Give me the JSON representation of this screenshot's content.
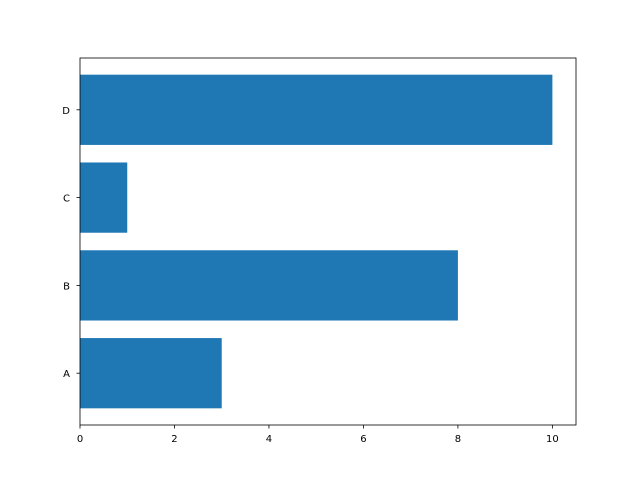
{
  "chart_data": {
    "type": "bar",
    "orientation": "horizontal",
    "categories": [
      "A",
      "B",
      "C",
      "D"
    ],
    "values": [
      3,
      8,
      1,
      10
    ],
    "title": "",
    "xlabel": "",
    "ylabel": "",
    "xlim": [
      0,
      10.5
    ],
    "xticks": [
      0,
      2,
      4,
      6,
      8,
      10
    ],
    "bar_color": "#1f77b4",
    "grid": false,
    "legend": "none"
  }
}
